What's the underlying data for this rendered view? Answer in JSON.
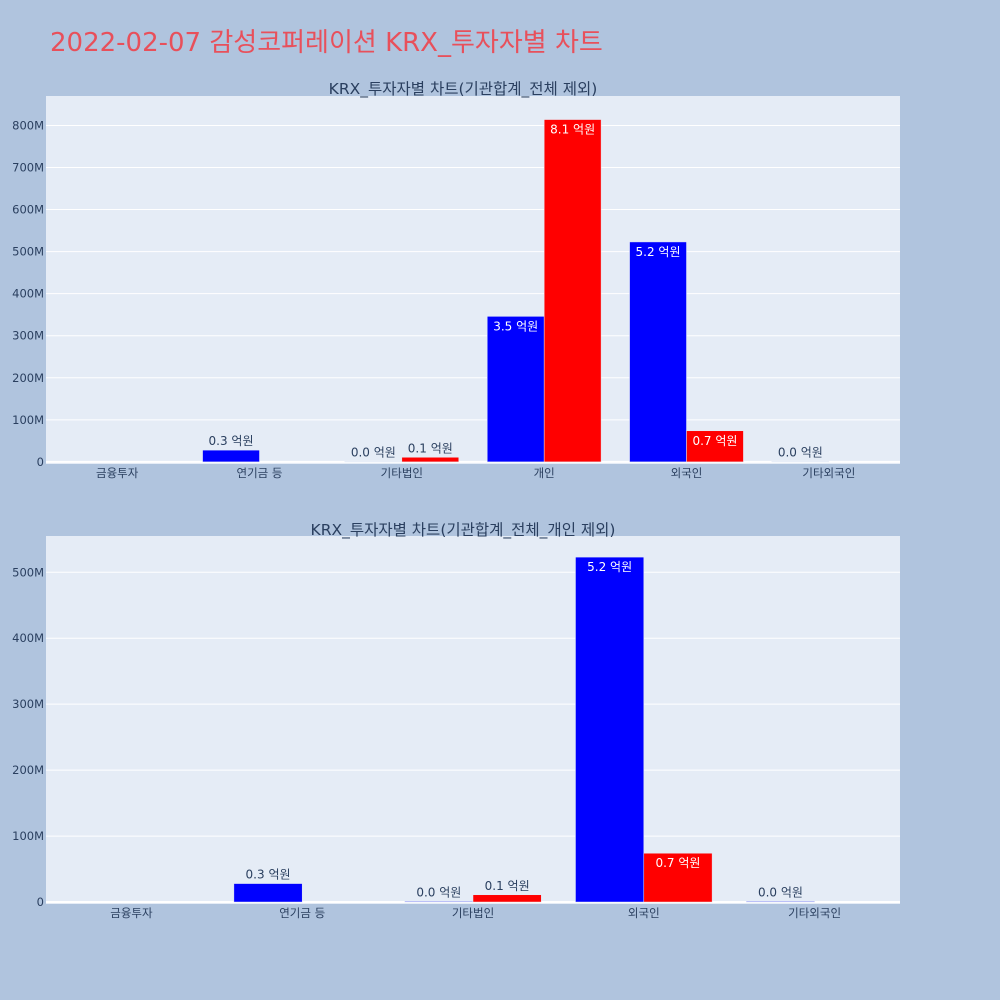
{
  "page_title": "2022-02-07 감성코퍼레이션 KRX_투자자별 차트",
  "colors": {
    "background": "#b0c4de",
    "plot_bg": "#e5ecf6",
    "series_a": "#0000ff",
    "series_b": "#ff0000",
    "title": "#e8505b"
  },
  "chart_data": [
    {
      "type": "bar",
      "title": "KRX_투자자별 차트(기관합계_전체 제외)",
      "categories": [
        "금융투자",
        "연기금 등",
        "기타법인",
        "개인",
        "외국인",
        "기타외국인"
      ],
      "series": [
        {
          "color": "#0000ff",
          "values": [
            0,
            28000000,
            1000000,
            346000000,
            523000000,
            1000000
          ],
          "labels": [
            "",
            "0.3 억원",
            "0.0 억원",
            "3.5 억원",
            "5.2 억원",
            "0.0 억원"
          ]
        },
        {
          "color": "#ff0000",
          "values": [
            0,
            0,
            11000000,
            814000000,
            74000000,
            0
          ],
          "labels": [
            "",
            "",
            "0.1 억원",
            "8.1 억원",
            "0.7 억원",
            ""
          ]
        }
      ],
      "yticks": [
        0,
        100000000,
        200000000,
        300000000,
        400000000,
        500000000,
        600000000,
        700000000,
        800000000
      ],
      "ytick_labels": [
        "0",
        "100M",
        "200M",
        "300M",
        "400M",
        "500M",
        "600M",
        "700M",
        "800M"
      ],
      "ylim": [
        -5000000,
        870000000
      ],
      "grid": true
    },
    {
      "type": "bar",
      "title": "KRX_투자자별 차트(기관합계_전체_개인 제외)",
      "categories": [
        "금융투자",
        "연기금 등",
        "기타법인",
        "외국인",
        "기타외국인"
      ],
      "series": [
        {
          "color": "#0000ff",
          "values": [
            0,
            28000000,
            1000000,
            523000000,
            1000000
          ],
          "labels": [
            "",
            "0.3 억원",
            "0.0 억원",
            "5.2 억원",
            "0.0 억원"
          ]
        },
        {
          "color": "#ff0000",
          "values": [
            0,
            0,
            11000000,
            74000000,
            0
          ],
          "labels": [
            "",
            "",
            "0.1 억원",
            "0.7 억원",
            ""
          ]
        }
      ],
      "yticks": [
        0,
        100000000,
        200000000,
        300000000,
        400000000,
        500000000
      ],
      "ytick_labels": [
        "0",
        "100M",
        "200M",
        "300M",
        "400M",
        "500M"
      ],
      "ylim": [
        -3000000,
        555000000
      ],
      "grid": true
    }
  ]
}
